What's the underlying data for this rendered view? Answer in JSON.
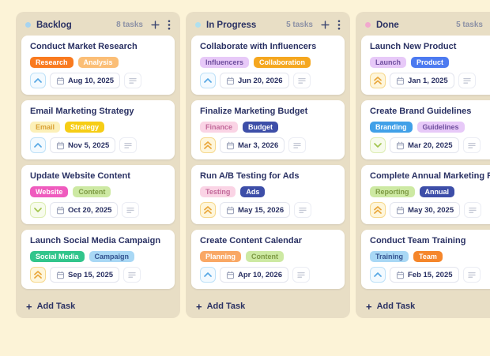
{
  "board": {
    "columns": [
      {
        "name": "Backlog",
        "dot_color": "#A7D4F0",
        "task_count": "8 tasks",
        "add_task_label": "Add Task",
        "cards": [
          {
            "title": "Conduct Market Research",
            "tags": [
              {
                "label": "Research",
                "bg": "#F97A1F",
                "fg": "#FFFFFF"
              },
              {
                "label": "Analysis",
                "bg": "#FBBE76",
                "fg": "#FFFFFF"
              }
            ],
            "priority": "up",
            "due_date": "Aug 10, 2025"
          },
          {
            "title": "Email Marketing Strategy",
            "tags": [
              {
                "label": "Email",
                "bg": "#FCF0B9",
                "fg": "#D9A136"
              },
              {
                "label": "Strategy",
                "bg": "#F6CD16",
                "fg": "#FFFFFF"
              }
            ],
            "priority": "up",
            "due_date": "Nov 5, 2025"
          },
          {
            "title": "Update Website Content",
            "tags": [
              {
                "label": "Website",
                "bg": "#EF5BBE",
                "fg": "#FFFFFF"
              },
              {
                "label": "Content",
                "bg": "#CDE9A3",
                "fg": "#7D9A44"
              }
            ],
            "priority": "down",
            "due_date": "Oct 20, 2025"
          },
          {
            "title": "Launch Social Media Campaign",
            "tags": [
              {
                "label": "Social Media",
                "bg": "#32C58C",
                "fg": "#FFFFFF"
              },
              {
                "label": "Campaign",
                "bg": "#A9D8F5",
                "fg": "#33528F"
              }
            ],
            "priority": "double-up",
            "due_date": "Sep 15, 2025"
          }
        ]
      },
      {
        "name": "In Progress",
        "dot_color": "#AFE0EF",
        "task_count": "5 tasks",
        "add_task_label": "Add Task",
        "cards": [
          {
            "title": "Collaborate with Influencers",
            "tags": [
              {
                "label": "Influencers",
                "bg": "#E7C9F8",
                "fg": "#6F4F9E"
              },
              {
                "label": "Collaboration",
                "bg": "#F5A71F",
                "fg": "#FFFFFF"
              }
            ],
            "priority": "up",
            "due_date": "Jun 20, 2026"
          },
          {
            "title": "Finalize Marketing Budget",
            "tags": [
              {
                "label": "Finance",
                "bg": "#FAD4E5",
                "fg": "#C2699A"
              },
              {
                "label": "Budget",
                "bg": "#3D4EA8",
                "fg": "#FFFFFF"
              }
            ],
            "priority": "double-up",
            "due_date": "Mar 3, 2026"
          },
          {
            "title": "Run A/B Testing for Ads",
            "tags": [
              {
                "label": "Testing",
                "bg": "#FAD4E5",
                "fg": "#C2699A"
              },
              {
                "label": "Ads",
                "bg": "#3D4EA8",
                "fg": "#FFFFFF"
              }
            ],
            "priority": "double-up",
            "due_date": "May 15, 2026"
          },
          {
            "title": "Create Content Calendar",
            "tags": [
              {
                "label": "Planning",
                "bg": "#F9A865",
                "fg": "#FFFFFF"
              },
              {
                "label": "Content",
                "bg": "#CDE9A3",
                "fg": "#7D9A44"
              }
            ],
            "priority": "up",
            "due_date": "Apr 10, 2026"
          }
        ]
      },
      {
        "name": "Done",
        "dot_color": "#F2A9CE",
        "task_count": "5 tasks",
        "add_task_label": "Add Task",
        "cards": [
          {
            "title": "Launch New Product",
            "tags": [
              {
                "label": "Launch",
                "bg": "#E7C9F8",
                "fg": "#6F4F9E"
              },
              {
                "label": "Product",
                "bg": "#4C7AF0",
                "fg": "#FFFFFF"
              }
            ],
            "priority": "double-up",
            "due_date": "Jan 1, 2025"
          },
          {
            "title": "Create Brand Guidelines",
            "tags": [
              {
                "label": "Branding",
                "bg": "#41A0E8",
                "fg": "#FFFFFF"
              },
              {
                "label": "Guidelines",
                "bg": "#E7C9F8",
                "fg": "#6F4F9E"
              }
            ],
            "priority": "down",
            "due_date": "Mar 20, 2025"
          },
          {
            "title": "Complete Annual Marketing Report",
            "tags": [
              {
                "label": "Reporting",
                "bg": "#CDE9A3",
                "fg": "#7D9A44"
              },
              {
                "label": "Annual",
                "bg": "#3D4EA8",
                "fg": "#FFFFFF"
              }
            ],
            "priority": "double-up",
            "due_date": "May 30, 2025"
          },
          {
            "title": "Conduct Team Training",
            "tags": [
              {
                "label": "Training",
                "bg": "#A9D8F5",
                "fg": "#33528F"
              },
              {
                "label": "Team",
                "bg": "#F5862B",
                "fg": "#FFFFFF"
              }
            ],
            "priority": "up",
            "due_date": "Feb 15, 2025"
          }
        ]
      }
    ]
  },
  "priority_styles": {
    "up": {
      "bg": "#F3FAFF",
      "border": "#BEE1F8",
      "icon": "#57A8E4"
    },
    "double-up": {
      "bg": "#FEF6DB",
      "border": "#F6D88D",
      "icon": "#E9A63A"
    },
    "down": {
      "bg": "#F7FBEC",
      "border": "#DCEDB2",
      "icon": "#A2C44E"
    }
  },
  "colors": {
    "page_bg": "#FCF3D7",
    "column_bg": "#E8DEC5",
    "card_bg": "#FFFFFF",
    "title_text": "#2A3163",
    "muted_text": "#8C91A5",
    "icon_dark": "#3A4570"
  },
  "icons": {
    "plus": "+",
    "kebab_menu": "⋮",
    "calendar": "▦",
    "notes": "≡",
    "chevron_up": "⌃",
    "chevron_double_up": "⌃⌃",
    "chevron_down": "⌄"
  }
}
